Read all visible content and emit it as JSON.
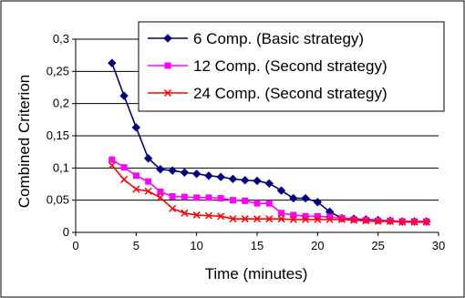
{
  "chart_data": {
    "type": "line",
    "xlabel": "Time (minutes)",
    "ylabel": "Combined Criterion",
    "xlim": [
      0,
      30
    ],
    "ylim": [
      0,
      0.3
    ],
    "x_ticks": [
      0,
      5,
      10,
      15,
      20,
      25,
      30
    ],
    "y_ticks": [
      0,
      0.05,
      0.1,
      0.15,
      0.2,
      0.25,
      0.3
    ],
    "x_tick_labels": [
      "0",
      "5",
      "10",
      "15",
      "20",
      "25",
      "30"
    ],
    "y_tick_labels": [
      "0",
      "0,05",
      "0,1",
      "0,15",
      "0,2",
      "0,25",
      "0,3"
    ],
    "grid": "horizontal",
    "legend_position": "top-right",
    "series": [
      {
        "name": "6 Comp. (Basic strategy)",
        "color": "#000080",
        "marker": "diamond",
        "x": [
          3,
          4,
          5,
          6,
          7,
          8,
          9,
          10,
          11,
          12,
          13,
          14,
          15,
          16,
          17,
          18,
          19,
          20,
          21,
          22,
          23,
          24,
          25,
          26,
          27,
          28,
          29
        ],
        "y": [
          0.263,
          0.212,
          0.163,
          0.115,
          0.098,
          0.096,
          0.093,
          0.091,
          0.088,
          0.086,
          0.083,
          0.081,
          0.08,
          0.076,
          0.065,
          0.053,
          0.053,
          0.047,
          0.032,
          0.022,
          0.021,
          0.02,
          0.019,
          0.018,
          0.017,
          0.017,
          0.017
        ]
      },
      {
        "name": "12 Comp. (Second strategy)",
        "color": "#ff00ff",
        "marker": "square",
        "x": [
          3,
          4,
          5,
          6,
          7,
          8,
          9,
          10,
          11,
          12,
          13,
          14,
          15,
          16,
          17,
          18,
          19,
          20,
          21,
          22,
          23,
          24,
          25,
          26,
          27,
          28,
          29
        ],
        "y": [
          0.113,
          0.101,
          0.088,
          0.079,
          0.063,
          0.056,
          0.055,
          0.054,
          0.054,
          0.053,
          0.05,
          0.049,
          0.045,
          0.045,
          0.03,
          0.027,
          0.025,
          0.025,
          0.024,
          0.022,
          0.02,
          0.019,
          0.018,
          0.018,
          0.017,
          0.017,
          0.017
        ]
      },
      {
        "name": "24 Comp. (Second strategy)",
        "color": "#ff0000",
        "marker": "x",
        "x": [
          3,
          4,
          5,
          6,
          7,
          8,
          9,
          10,
          11,
          12,
          13,
          14,
          15,
          16,
          17,
          18,
          19,
          20,
          21,
          22,
          23,
          24,
          25,
          26,
          27,
          28,
          29
        ],
        "y": [
          0.104,
          0.082,
          0.067,
          0.064,
          0.054,
          0.037,
          0.03,
          0.027,
          0.026,
          0.025,
          0.021,
          0.021,
          0.021,
          0.021,
          0.021,
          0.02,
          0.02,
          0.02,
          0.02,
          0.02,
          0.019,
          0.018,
          0.017,
          0.017,
          0.016,
          0.016,
          0.016
        ]
      }
    ]
  }
}
